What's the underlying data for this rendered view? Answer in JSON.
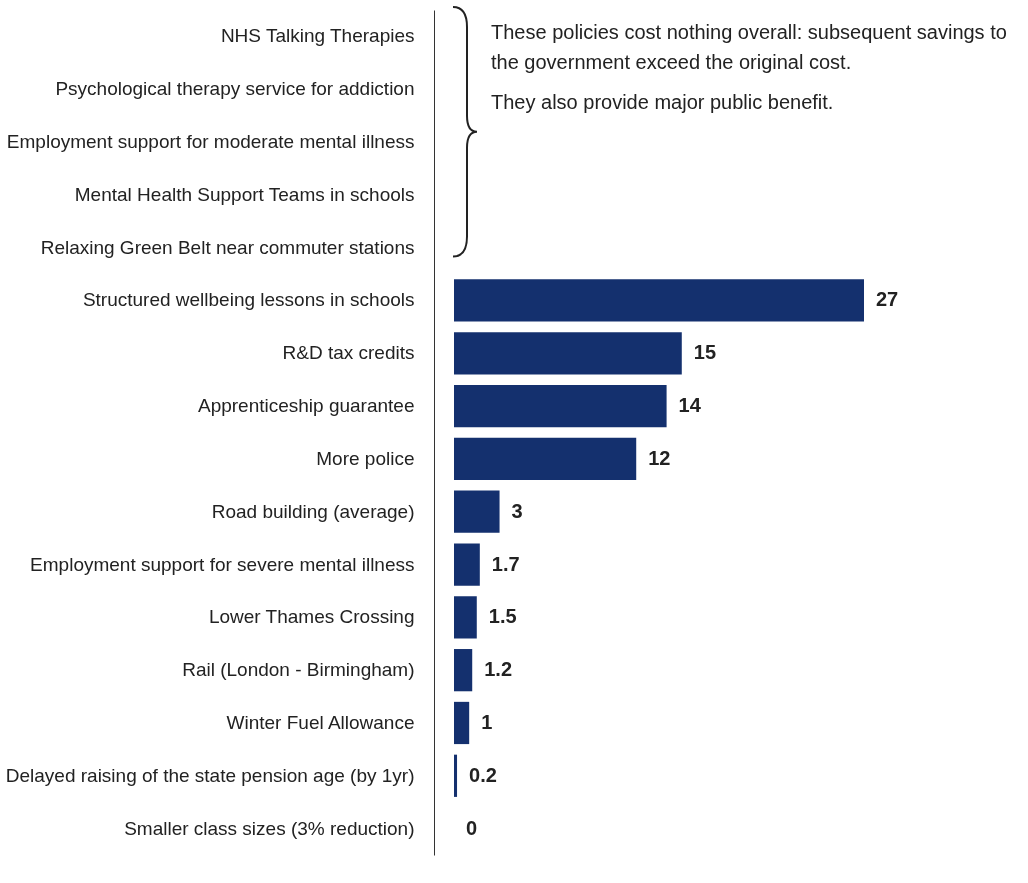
{
  "chart_data": {
    "type": "bar",
    "orientation": "horizontal",
    "categories": [
      "NHS Talking Therapies",
      "Psychological therapy service for addiction",
      "Employment support for moderate mental illness",
      "Mental Health Support Teams in schools",
      "Relaxing Green Belt near commuter stations",
      "Structured wellbeing lessons in schools",
      "R&D tax credits",
      "Apprenticeship guarantee",
      "More police",
      "Road building (average)",
      "Employment support for severe mental illness",
      "Lower Thames Crossing",
      "Rail (London - Birmingham)",
      "Winter Fuel Allowance",
      "Delayed raising of the state pension age (by 1yr)",
      "Smaller class sizes (3% reduction)"
    ],
    "values": [
      null,
      null,
      null,
      null,
      null,
      27,
      15,
      14,
      12,
      3,
      1.7,
      1.5,
      1.2,
      1,
      0.2,
      0
    ],
    "color": "#14306e",
    "data_labels": true,
    "annotations": [
      "These policies cost nothing overall: subsequent savings to the government exceed the original cost.",
      "They also provide major public benefit."
    ]
  }
}
